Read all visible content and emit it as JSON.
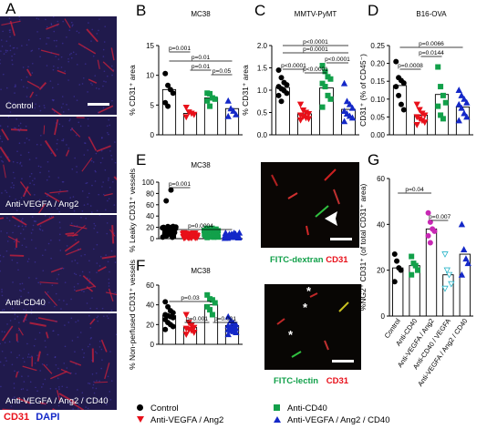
{
  "colors": {
    "control": "#000000",
    "antivegfa": "#e8101a",
    "anticd40": "#12a04a",
    "combo": "#1428c8",
    "magenta": "#c828b4",
    "cyan": "#28b4c8",
    "red_text": "#e8101a",
    "blue_text": "#1428c8",
    "green_text": "#12a04a"
  },
  "panel_letters": [
    "A",
    "B",
    "C",
    "D",
    "E",
    "F",
    "G"
  ],
  "panelA": {
    "images": [
      "Control",
      "Anti-VEGFA / Ang2",
      "Anti-CD40",
      "Anti-VEGFA / Ang2 / CD40"
    ],
    "stain1": "CD31",
    "stain2": "DAPI"
  },
  "panelE_img": {
    "stain1": "FITC-dextran",
    "stain2": "CD31"
  },
  "panelF_img": {
    "stain1": "FITC-lectin",
    "stain2": "CD31"
  },
  "legend": {
    "items": [
      "Control",
      "Anti-VEGFA / Ang2",
      "Anti-CD40",
      "Anti-VEGFA / Ang2 / CD40"
    ]
  },
  "chart_data": [
    {
      "panel": "B",
      "type": "bar",
      "title": "MC38",
      "ylabel": "% CD31⁺ area",
      "ylim": [
        0,
        15
      ],
      "yticks": [
        0,
        5,
        10,
        15
      ],
      "categories": [
        "Control",
        "Anti-VEGFA / Ang2",
        "Anti-CD40",
        "Anti-VEGFA / Ang2 / CD40"
      ],
      "values": [
        7.6,
        3.6,
        6.2,
        4.4
      ],
      "points": [
        [
          10.3,
          8.3,
          7.6,
          7.0,
          5.4,
          4.8
        ],
        [
          4.6,
          3.8,
          3.6,
          3.4,
          3.0
        ],
        [
          7.0,
          6.9,
          6.2,
          6.0,
          5.7,
          4.8
        ],
        [
          5.7,
          4.4,
          4.0,
          3.4,
          3.1
        ]
      ],
      "comparisons": [
        {
          "pair": [
            0,
            1
          ],
          "label": "p=0.001"
        },
        {
          "pair": [
            0,
            3
          ],
          "label": "p=0.01"
        },
        {
          "pair": [
            1,
            2
          ],
          "label": "p=0.01"
        },
        {
          "pair": [
            2,
            3
          ],
          "label": "p=0.05"
        }
      ]
    },
    {
      "panel": "C",
      "type": "bar",
      "title": "MMTV-PyMT",
      "ylabel": "% CD31⁺ area",
      "ylim": [
        0,
        2.0
      ],
      "yticks": [
        0.0,
        0.5,
        1.0,
        1.5,
        2.0
      ],
      "categories": [
        "Control",
        "Anti-VEGFA / Ang2",
        "Anti-CD40",
        "Anti-VEGFA / Ang2 / CD40"
      ],
      "values": [
        1.06,
        0.47,
        1.05,
        0.57
      ],
      "points": [
        [
          1.45,
          1.28,
          1.17,
          1.12,
          1.08,
          1.03,
          0.99,
          0.93,
          0.88,
          0.75
        ],
        [
          0.68,
          0.55,
          0.5,
          0.47,
          0.44,
          0.41,
          0.38,
          0.36,
          0.33
        ],
        [
          1.55,
          1.42,
          1.3,
          1.25,
          1.15,
          1.08,
          0.88,
          0.8,
          0.62
        ],
        [
          1.15,
          0.75,
          0.68,
          0.6,
          0.53,
          0.47,
          0.42,
          0.38,
          0.3
        ]
      ],
      "comparisons": [
        {
          "pair": [
            0,
            1
          ],
          "label": "p<0.0001"
        },
        {
          "pair": [
            1,
            2
          ],
          "label": "p<0.0001"
        },
        {
          "pair": [
            0,
            3
          ],
          "label": "p=0.0001"
        },
        {
          "pair": [
            0,
            3
          ],
          "label": "p<0.0001"
        },
        {
          "pair": [
            2,
            3
          ],
          "label": "p<0.0001"
        }
      ]
    },
    {
      "panel": "D",
      "type": "bar",
      "title": "B16-OVA",
      "ylabel": "CD31⁺ (% of CD45⁻)",
      "ylim": [
        0,
        0.25
      ],
      "yticks": [
        0.0,
        0.05,
        0.1,
        0.15,
        0.2,
        0.25
      ],
      "categories": [
        "Control",
        "Anti-VEGFA / Ang2",
        "Anti-CD40",
        "Anti-VEGFA / Ang2 / CD40"
      ],
      "values": [
        0.138,
        0.055,
        0.113,
        0.078
      ],
      "points": [
        [
          0.205,
          0.16,
          0.152,
          0.145,
          0.135,
          0.11,
          0.085,
          0.07
        ],
        [
          0.085,
          0.07,
          0.06,
          0.055,
          0.05,
          0.045,
          0.04,
          0.035,
          0.028
        ],
        [
          0.19,
          0.135,
          0.11,
          0.09,
          0.08,
          0.055,
          0.045
        ],
        [
          0.125,
          0.11,
          0.1,
          0.09,
          0.085,
          0.075,
          0.06,
          0.05,
          0.04
        ]
      ],
      "comparisons": [
        {
          "pair": [
            0,
            1
          ],
          "label": "p=0.0008"
        },
        {
          "pair": [
            1,
            2
          ],
          "label": "p=0.0144"
        },
        {
          "pair": [
            0,
            3
          ],
          "label": "p=0.0066"
        }
      ]
    },
    {
      "panel": "E",
      "type": "bar",
      "title": "MC38",
      "ylabel": "% Leaky CD31⁺ vessels",
      "ylim": [
        0,
        100
      ],
      "yticks": [
        0,
        20,
        40,
        60,
        80,
        100
      ],
      "categories": [
        "Control",
        "Anti-VEGFA / Ang2",
        "Anti-CD40",
        "Anti-VEGFA / Ang2 / CD40"
      ],
      "values": [
        14,
        6,
        11,
        6
      ],
      "comparisons": [
        {
          "pair": [
            0,
            1
          ],
          "label": "p=0.001"
        },
        {
          "pair": [
            0,
            3
          ],
          "label": "p=0.0004"
        }
      ]
    },
    {
      "panel": "F",
      "type": "bar",
      "title": "MC38",
      "ylabel": "% Non-perfused CD31⁺ vessels",
      "ylim": [
        0,
        60
      ],
      "yticks": [
        0,
        20,
        40,
        60
      ],
      "categories": [
        "Control",
        "Anti-VEGFA / Ang2",
        "Anti-CD40",
        "Anti-VEGFA / Ang2 / CD40"
      ],
      "values": [
        29,
        17,
        40,
        19
      ],
      "points": [
        [
          43,
          38,
          34,
          32,
          30,
          29,
          28,
          27,
          25,
          22,
          20,
          18,
          15
        ],
        [
          30,
          22,
          19,
          17,
          16,
          15,
          14,
          12,
          10
        ],
        [
          50,
          46,
          45,
          42,
          38,
          35,
          30
        ],
        [
          28,
          24,
          22,
          20,
          19,
          18,
          17,
          16,
          15,
          14,
          13,
          12,
          10
        ]
      ],
      "comparisons": [
        {
          "pair": [
            0,
            2
          ],
          "label": "p=0.03"
        },
        {
          "pair": [
            1,
            2
          ],
          "label": "p=0.001"
        },
        {
          "pair": [
            2,
            3
          ],
          "label": "p=0.001"
        }
      ]
    },
    {
      "panel": "G",
      "type": "bar",
      "ylabel": "%NG2⁺ CD31⁺ (of total CD31⁺ area)",
      "ylim": [
        0,
        60
      ],
      "yticks": [
        0,
        20,
        40,
        60
      ],
      "categories": [
        "Control",
        "Anti-CD40",
        "Anti-VEGFA / Ang2",
        "Anti-CD40 / VEGFA",
        "Anti-VEGFA / Ang2 / CD40"
      ],
      "values": [
        21,
        22,
        38,
        18,
        27
      ],
      "points": [
        [
          27,
          24,
          21,
          20,
          15
        ],
        [
          26,
          23,
          22,
          20,
          18
        ],
        [
          45,
          41,
          38,
          37,
          35,
          32
        ],
        [
          27,
          20,
          18,
          14,
          12
        ],
        [
          40,
          29,
          25,
          23,
          18
        ]
      ],
      "comparisons": [
        {
          "pair": [
            0,
            2
          ],
          "label": "p=0.04"
        },
        {
          "pair": [
            2,
            3
          ],
          "label": "p=0.007"
        }
      ]
    }
  ]
}
